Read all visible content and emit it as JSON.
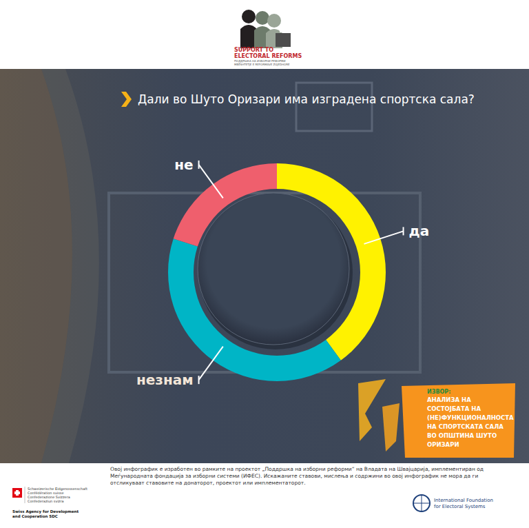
{
  "chart_data": {
    "type": "donut",
    "title": "Дали во Шуто Оризари има изградена спортска сала?",
    "categories": [
      "да",
      "незнам",
      "не"
    ],
    "values": [
      40,
      40,
      20
    ],
    "colors": [
      "#fff200",
      "#00b5c6",
      "#ef5f6d"
    ],
    "data_labels": false,
    "legend": false
  },
  "header": {
    "title_lines": [
      "SUPPORT TO",
      "ELECTORAL REFORMS"
    ],
    "sub_lines": [
      "ПОДДРШКА НА ИЗБОРНИ РЕФОРМИ",
      "MBËSHTETJE E REFORMAVE ZGJEDHORE"
    ]
  },
  "source": {
    "label": "ИЗВОР:",
    "lines": [
      "АНАЛИЗА НА",
      "СОСТОЈБАТА НА",
      "(НЕ)ФУНКЦИОНАЛНОСТА",
      "НА СПОРТСКАТА САЛА",
      "ВО ОПШТИНА ШУТО",
      "ОРИЗАРИ"
    ]
  },
  "footer": {
    "disclaimer": "Овој инфографик е изработен во рамките на проектот „Поддршка на изборни реформи“ на Владата на Швајцарија, имплементиран од Меѓународната фондација за изборни системи (ИФЕС). Искажаните ставови, мислења и содржини во овој инфографик не мора да ги отсликуваат ставовите на донаторот, проектот или имплементаторот.",
    "swiss_lines": [
      "Schweizerische Eidgenossenschaft",
      "Confédération suisse",
      "Confederazione Svizzera",
      "Confederaziun svizra"
    ],
    "swiss_agency": [
      "Swiss Agency for Development",
      "and Cooperation SDC"
    ],
    "ifes_lines": [
      "International Foundation",
      "for Electoral Systems"
    ]
  }
}
